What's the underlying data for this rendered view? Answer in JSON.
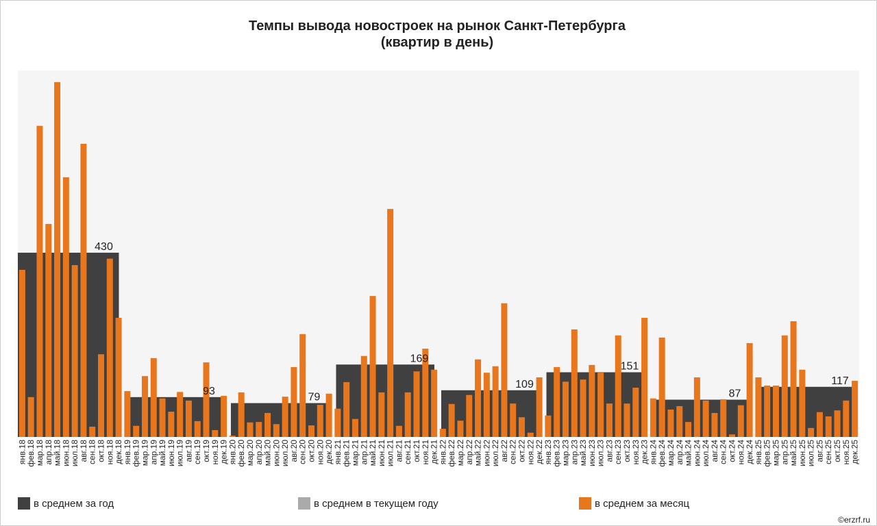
{
  "chart_data": {
    "type": "bar",
    "title": "Темпы вывода новостроек на рынок Санкт-Петербурга",
    "subtitle": "(квартир в день)",
    "categories": [
      "янв.18",
      "фев.18",
      "мар.18",
      "апр.18",
      "май.18",
      "июн.18",
      "июл.18",
      "авг.18",
      "сен.18",
      "окт.18",
      "ноя.18",
      "дек.18",
      "янв.19",
      "фев.19",
      "мар.19",
      "апр.19",
      "май.19",
      "июн.19",
      "июл.19",
      "авг.19",
      "сен.19",
      "окт.19",
      "ноя.19",
      "дек.19",
      "янв.20",
      "фев.20",
      "мар.20",
      "апр.20",
      "май.20",
      "июн.20",
      "июл.20",
      "авг.20",
      "сен.20",
      "окт.20",
      "ноя.20",
      "дек.20",
      "янв.21",
      "фев.21",
      "мар.21",
      "апр.21",
      "май.21",
      "июн.21",
      "июл.21",
      "авг.21",
      "сен.21",
      "окт.21",
      "ноя.21",
      "дек.21",
      "янв.22",
      "фев.22",
      "мар.22",
      "апр.22",
      "май.22",
      "июн.22",
      "июл.22",
      "авг.22",
      "сен.22",
      "окт.22",
      "ноя.22",
      "дек.22",
      "янв.23",
      "фев.23",
      "мар.23",
      "апр.23",
      "май.23",
      "июн.23",
      "июл.23",
      "авг.23",
      "сен.23",
      "окт.23",
      "ноя.23",
      "дек.23",
      "янв.24",
      "фев.24",
      "мар.24",
      "апр.24",
      "май.24",
      "июн.24",
      "июл.24",
      "авг.24",
      "сен.24",
      "окт.24",
      "ноя.24",
      "дек.24",
      "янв.25",
      "фев.25",
      "мар.25",
      "апр.25",
      "май.25",
      "июн.25",
      "июл.25",
      "авг.25",
      "сен.25",
      "окт.25",
      "ноя.25",
      "дек.25"
    ],
    "annual": {
      "name": "в среднем за год",
      "color": "#404040",
      "values": [
        430,
        93,
        79,
        169,
        109,
        151,
        87,
        117
      ]
    },
    "current_year": {
      "name": "в среднем в текущем году",
      "color": "#aaaaaa"
    },
    "monthly": {
      "name": "в среднем за месяц",
      "color": "#e8761c",
      "values": [
        390,
        93,
        726,
        497,
        828,
        606,
        401,
        684,
        24,
        193,
        416,
        278,
        107,
        26,
        142,
        184,
        90,
        59,
        105,
        85,
        37,
        174,
        16,
        96,
        3,
        104,
        34,
        35,
        56,
        30,
        94,
        163,
        240,
        27,
        75,
        101,
        66,
        128,
        42,
        189,
        329,
        104,
        532,
        26,
        104,
        153,
        206,
        157,
        19,
        77,
        38,
        98,
        181,
        150,
        165,
        312,
        78,
        46,
        10,
        139,
        50,
        163,
        129,
        251,
        134,
        168,
        150,
        78,
        237,
        78,
        115,
        278,
        90,
        232,
        64,
        72,
        35,
        139,
        85,
        56,
        88,
        6,
        74,
        219,
        139,
        120,
        120,
        237,
        270,
        157,
        21,
        58,
        48,
        62,
        85,
        131
      ]
    },
    "ylim": [
      0,
      855
    ],
    "source": "©erzrf.ru"
  }
}
